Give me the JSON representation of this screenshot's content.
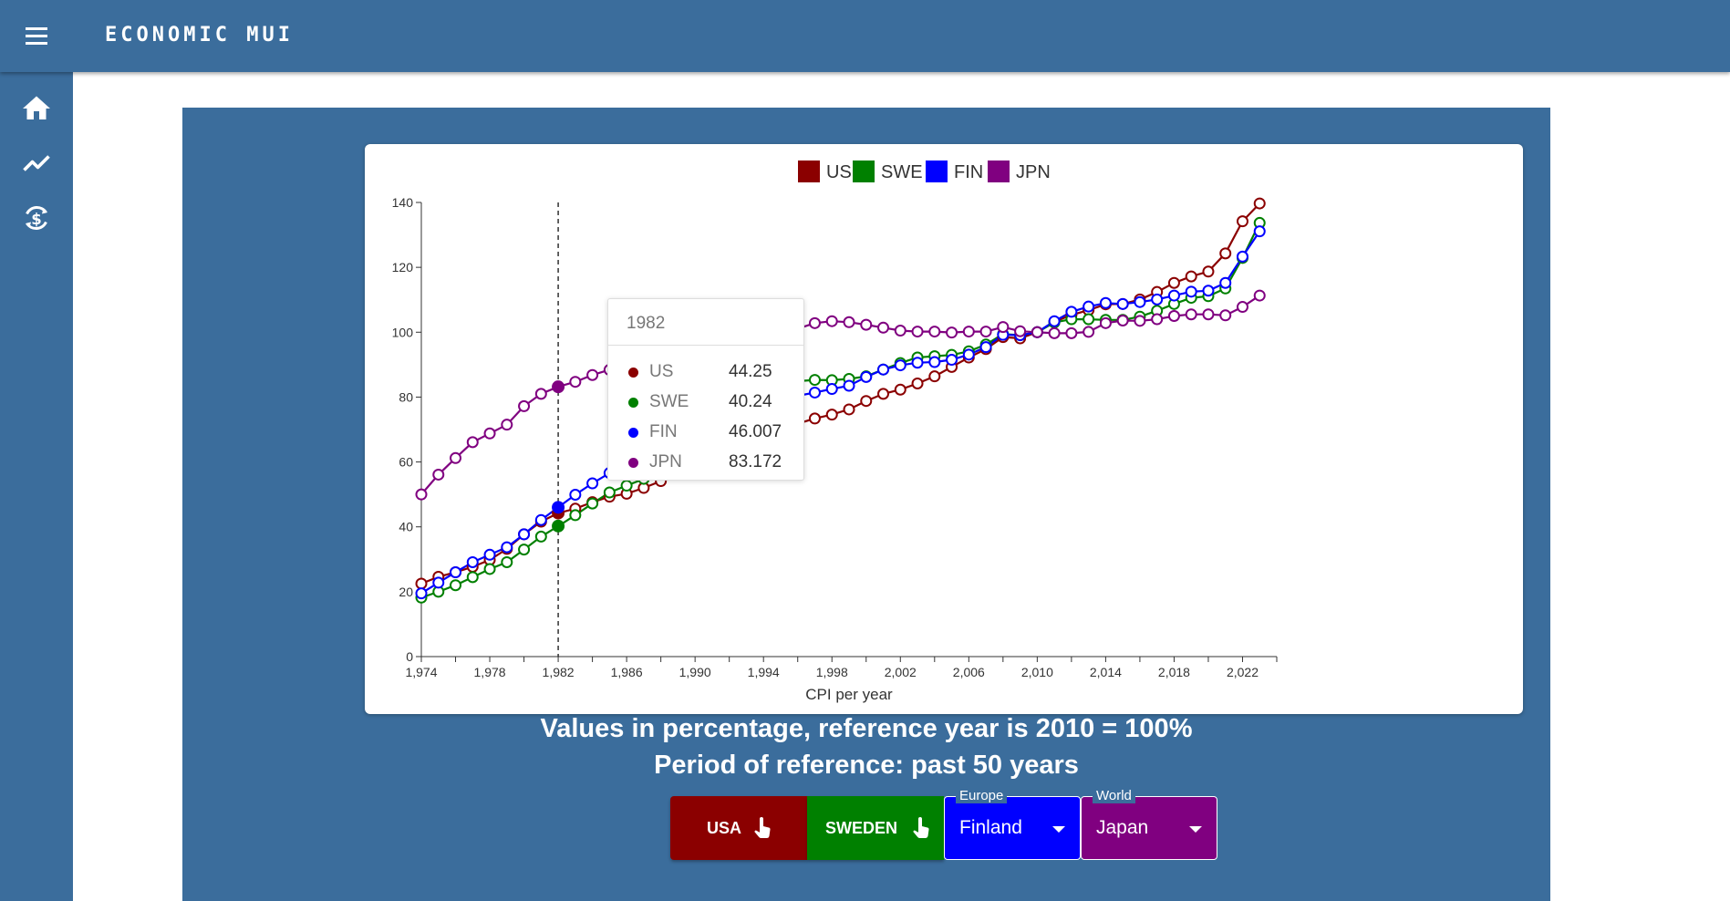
{
  "app": {
    "title": "ECONOMIC MUI"
  },
  "sidebar": {
    "items": [
      {
        "icon": "home-icon"
      },
      {
        "icon": "trending-icon"
      },
      {
        "icon": "currency-exchange-icon"
      }
    ]
  },
  "chart_data": {
    "type": "line",
    "title": "",
    "xlabel": "CPI per year",
    "ylabel": "",
    "xlim": [
      1974,
      2024
    ],
    "ylim": [
      0,
      140
    ],
    "yticks": [
      0,
      20,
      40,
      60,
      80,
      100,
      120,
      140
    ],
    "xticks": [
      1974,
      1978,
      1982,
      1986,
      1990,
      1994,
      1998,
      2002,
      2006,
      2010,
      2014,
      2018,
      2022
    ],
    "xtick_labels": [
      "1,974",
      "1,978",
      "1,982",
      "1,986",
      "1,990",
      "1,994",
      "1,998",
      "2,002",
      "2,006",
      "2,010",
      "2,014",
      "2,018",
      "2,022"
    ],
    "x": [
      1974,
      1975,
      1976,
      1977,
      1978,
      1979,
      1980,
      1981,
      1982,
      1983,
      1984,
      1985,
      1986,
      1987,
      1988,
      1989,
      1990,
      1991,
      1992,
      1993,
      1994,
      1995,
      1996,
      1997,
      1998,
      1999,
      2000,
      2001,
      2002,
      2003,
      2004,
      2005,
      2006,
      2007,
      2008,
      2009,
      2010,
      2011,
      2012,
      2013,
      2014,
      2015,
      2016,
      2017,
      2018,
      2019,
      2020,
      2021,
      2022,
      2023
    ],
    "legend_position": "top",
    "series": [
      {
        "name": "US",
        "color": "#8b0000",
        "values": [
          22.5,
          24.6,
          26.0,
          27.7,
          29.8,
          33.2,
          37.7,
          41.6,
          44.25,
          45.6,
          47.6,
          49.3,
          50.2,
          52.0,
          54.1,
          56.7,
          59.8,
          62.3,
          64.2,
          66.1,
          67.8,
          69.7,
          71.8,
          73.4,
          74.6,
          76.2,
          78.8,
          81.0,
          82.3,
          84.2,
          86.4,
          89.3,
          92.2,
          94.8,
          98.5,
          98.1,
          100,
          103.2,
          105.3,
          106.8,
          108.6,
          108.7,
          110.1,
          112.4,
          115.2,
          117.2,
          118.7,
          124.3,
          134.2,
          139.7
        ]
      },
      {
        "name": "SWE",
        "color": "#008000",
        "values": [
          18.2,
          20.0,
          22.0,
          24.5,
          27.0,
          29.1,
          33.0,
          37.0,
          40.24,
          43.6,
          47.2,
          50.6,
          52.7,
          54.8,
          58.0,
          61.7,
          67.9,
          74.4,
          76.1,
          80.5,
          82.4,
          84.4,
          84.9,
          85.3,
          85.2,
          85.6,
          86.4,
          88.5,
          90.5,
          92.2,
          92.6,
          93.0,
          94.1,
          96.2,
          99.4,
          99.1,
          100,
          103.0,
          104.0,
          104.0,
          103.8,
          103.8,
          104.8,
          106.6,
          108.7,
          110.6,
          111.1,
          113.5,
          122.9,
          133.7
        ]
      },
      {
        "name": "FIN",
        "color": "#0000ff",
        "values": [
          19.5,
          22.8,
          26.0,
          29.1,
          31.4,
          33.7,
          37.7,
          42.1,
          46.007,
          49.9,
          53.4,
          56.6,
          58.3,
          60.3,
          63.5,
          66.8,
          70.7,
          73.7,
          75.7,
          78.2,
          79.1,
          79.9,
          80.4,
          81.4,
          82.5,
          83.5,
          86.2,
          88.5,
          89.8,
          90.6,
          90.8,
          91.5,
          93.1,
          95.4,
          99.2,
          99.1,
          100,
          103.4,
          106.3,
          107.9,
          109.0,
          108.7,
          109.3,
          110.1,
          111.3,
          112.5,
          112.8,
          115.2,
          123.3,
          131.1
        ]
      },
      {
        "name": "JPN",
        "color": "#800080",
        "values": [
          50.0,
          56.1,
          61.2,
          66.1,
          68.8,
          71.5,
          77.2,
          81.0,
          83.172,
          84.7,
          86.8,
          88.4,
          89.1,
          89.0,
          89.6,
          91.6,
          94.3,
          97.4,
          98.9,
          100.2,
          101.0,
          101.0,
          101.1,
          102.8,
          103.4,
          103.1,
          102.3,
          101.4,
          100.5,
          100.2,
          100.2,
          99.9,
          100.2,
          100.2,
          101.6,
          100.3,
          100,
          99.7,
          99.7,
          100.1,
          102.8,
          103.6,
          103.5,
          104.0,
          105.0,
          105.5,
          105.5,
          105.2,
          107.8,
          111.3
        ]
      }
    ],
    "highlight_x": 1982,
    "tooltip": {
      "title": "1982",
      "rows": [
        {
          "name": "US",
          "value": "44.25",
          "color": "#8b0000"
        },
        {
          "name": "SWE",
          "value": "40.24",
          "color": "#008000"
        },
        {
          "name": "FIN",
          "value": "46.007",
          "color": "#0000ff"
        },
        {
          "name": "JPN",
          "value": "83.172",
          "color": "#800080"
        }
      ]
    }
  },
  "captions": {
    "line1": "Values in percentage, reference year is 2010 = 100%",
    "line2": "Period of reference: past 50 years"
  },
  "controls": {
    "usa_button": {
      "label": "USA",
      "color": "#8b0000"
    },
    "sweden_button": {
      "label": "SWEDEN",
      "color": "#008000"
    },
    "europe_select": {
      "legend": "Europe",
      "value": "Finland",
      "color": "#0000ff"
    },
    "world_select": {
      "legend": "World",
      "value": "Japan",
      "color": "#800080"
    }
  },
  "colors": {
    "primary": "#3b6d9c"
  }
}
